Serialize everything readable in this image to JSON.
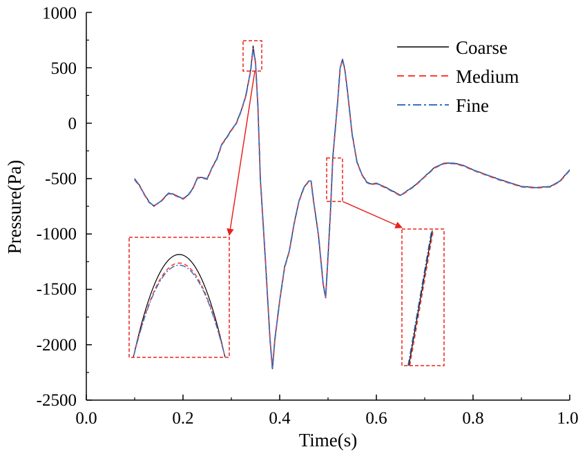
{
  "chart_data": {
    "type": "line",
    "title": "",
    "xlabel": "Time(s)",
    "ylabel": "Pressure(Pa)",
    "xlim": [
      0.0,
      1.0
    ],
    "ylim": [
      -2500,
      1000
    ],
    "x_ticks": [
      0.0,
      0.2,
      0.4,
      0.6,
      0.8,
      1.0
    ],
    "x_tick_labels": [
      "0.0",
      "0.2",
      "0.4",
      "0.6",
      "0.8",
      "1.0"
    ],
    "y_ticks": [
      1000,
      500,
      0,
      -500,
      -1000,
      -1500,
      -2000,
      -2500
    ],
    "y_tick_labels": [
      "1000",
      "500",
      "0",
      "-500",
      "-1000",
      "-1500",
      "-2000",
      "-2500"
    ],
    "grid": false,
    "legend_position": "top-right",
    "series": [
      {
        "name": "Coarse",
        "color": "#000000",
        "style": "solid",
        "x": [
          0.1,
          0.11,
          0.12,
          0.13,
          0.14,
          0.155,
          0.17,
          0.18,
          0.19,
          0.2,
          0.21,
          0.22,
          0.23,
          0.24,
          0.25,
          0.26,
          0.27,
          0.28,
          0.29,
          0.3,
          0.31,
          0.32,
          0.33,
          0.34,
          0.345,
          0.35,
          0.355,
          0.36,
          0.37,
          0.38,
          0.385,
          0.39,
          0.4,
          0.41,
          0.42,
          0.43,
          0.44,
          0.45,
          0.46,
          0.465,
          0.47,
          0.48,
          0.49,
          0.495,
          0.5,
          0.505,
          0.51,
          0.52,
          0.525,
          0.53,
          0.535,
          0.54,
          0.55,
          0.56,
          0.57,
          0.58,
          0.59,
          0.6,
          0.62,
          0.65,
          0.68,
          0.7,
          0.72,
          0.74,
          0.76,
          0.78,
          0.8,
          0.85,
          0.9,
          0.93,
          0.96,
          0.98,
          1.0
        ],
        "y": [
          -500,
          -560,
          -640,
          -710,
          -750,
          -700,
          -630,
          -640,
          -660,
          -680,
          -650,
          -590,
          -490,
          -490,
          -500,
          -400,
          -320,
          -190,
          -130,
          -60,
          0,
          110,
          250,
          480,
          700,
          550,
          150,
          -500,
          -1200,
          -1950,
          -2220,
          -1950,
          -1600,
          -1300,
          -1150,
          -900,
          -700,
          -580,
          -520,
          -520,
          -700,
          -1000,
          -1450,
          -1580,
          -1200,
          -800,
          -300,
          200,
          500,
          580,
          480,
          300,
          -100,
          -350,
          -460,
          -530,
          -550,
          -540,
          -580,
          -650,
          -560,
          -480,
          -400,
          -360,
          -360,
          -380,
          -420,
          -500,
          -570,
          -580,
          -570,
          -520,
          -420
        ]
      },
      {
        "name": "Medium",
        "color": "#ff3b30",
        "style": "dashed",
        "x": [
          0.1,
          0.11,
          0.12,
          0.13,
          0.14,
          0.155,
          0.17,
          0.18,
          0.19,
          0.2,
          0.21,
          0.22,
          0.23,
          0.24,
          0.25,
          0.26,
          0.27,
          0.28,
          0.29,
          0.3,
          0.31,
          0.32,
          0.33,
          0.34,
          0.345,
          0.35,
          0.355,
          0.36,
          0.37,
          0.38,
          0.385,
          0.39,
          0.4,
          0.41,
          0.42,
          0.43,
          0.44,
          0.45,
          0.46,
          0.465,
          0.47,
          0.48,
          0.49,
          0.495,
          0.5,
          0.505,
          0.51,
          0.52,
          0.525,
          0.53,
          0.535,
          0.54,
          0.55,
          0.56,
          0.57,
          0.58,
          0.59,
          0.6,
          0.62,
          0.65,
          0.68,
          0.7,
          0.72,
          0.74,
          0.76,
          0.78,
          0.8,
          0.85,
          0.9,
          0.93,
          0.96,
          0.98,
          1.0
        ],
        "y": [
          -510,
          -565,
          -645,
          -715,
          -745,
          -705,
          -635,
          -645,
          -665,
          -685,
          -655,
          -595,
          -495,
          -495,
          -505,
          -405,
          -325,
          -195,
          -135,
          -65,
          -5,
          105,
          245,
          475,
          680,
          545,
          145,
          -505,
          -1205,
          -1955,
          -2215,
          -1955,
          -1605,
          -1305,
          -1155,
          -905,
          -705,
          -585,
          -525,
          -525,
          -705,
          -1005,
          -1455,
          -1575,
          -1205,
          -805,
          -305,
          195,
          495,
          575,
          475,
          295,
          -105,
          -355,
          -465,
          -535,
          -555,
          -545,
          -585,
          -655,
          -565,
          -485,
          -405,
          -365,
          -365,
          -385,
          -425,
          -505,
          -575,
          -585,
          -575,
          -525,
          -425
        ]
      },
      {
        "name": "Fine",
        "color": "#3a6fc4",
        "style": "dashdot",
        "x": [
          0.1,
          0.11,
          0.12,
          0.13,
          0.14,
          0.155,
          0.17,
          0.18,
          0.19,
          0.2,
          0.21,
          0.22,
          0.23,
          0.24,
          0.25,
          0.26,
          0.27,
          0.28,
          0.29,
          0.3,
          0.31,
          0.32,
          0.33,
          0.34,
          0.345,
          0.35,
          0.355,
          0.36,
          0.37,
          0.38,
          0.385,
          0.39,
          0.4,
          0.41,
          0.42,
          0.43,
          0.44,
          0.45,
          0.46,
          0.465,
          0.47,
          0.48,
          0.49,
          0.495,
          0.5,
          0.505,
          0.51,
          0.52,
          0.525,
          0.53,
          0.535,
          0.54,
          0.55,
          0.56,
          0.57,
          0.58,
          0.59,
          0.6,
          0.62,
          0.65,
          0.68,
          0.7,
          0.72,
          0.74,
          0.76,
          0.78,
          0.8,
          0.85,
          0.9,
          0.93,
          0.96,
          0.98,
          1.0
        ],
        "y": [
          -505,
          -562,
          -642,
          -712,
          -748,
          -702,
          -632,
          -642,
          -662,
          -682,
          -652,
          -592,
          -492,
          -492,
          -502,
          -402,
          -322,
          -192,
          -132,
          -62,
          -2,
          108,
          248,
          478,
          675,
          548,
          148,
          -502,
          -1202,
          -1952,
          -2218,
          -1952,
          -1602,
          -1302,
          -1152,
          -902,
          -702,
          -582,
          -522,
          -522,
          -702,
          -1002,
          -1452,
          -1578,
          -1202,
          -802,
          -302,
          198,
          498,
          578,
          478,
          298,
          -102,
          -352,
          -462,
          -532,
          -552,
          -542,
          -582,
          -652,
          -562,
          -482,
          -402,
          -362,
          -362,
          -382,
          -422,
          -502,
          -572,
          -582,
          -572,
          -522,
          -422
        ]
      }
    ],
    "zoom_regions": [
      {
        "name": "peak-zoom",
        "x_range": [
          0.334,
          0.358
        ],
        "y_range": [
          460,
          740
        ]
      },
      {
        "name": "slope-zoom",
        "x_range": [
          0.5,
          0.533
        ],
        "y_range": [
          -720,
          -320
        ]
      }
    ]
  },
  "colors": {
    "zoom_box": "#e8231b",
    "axis": "#000000"
  }
}
